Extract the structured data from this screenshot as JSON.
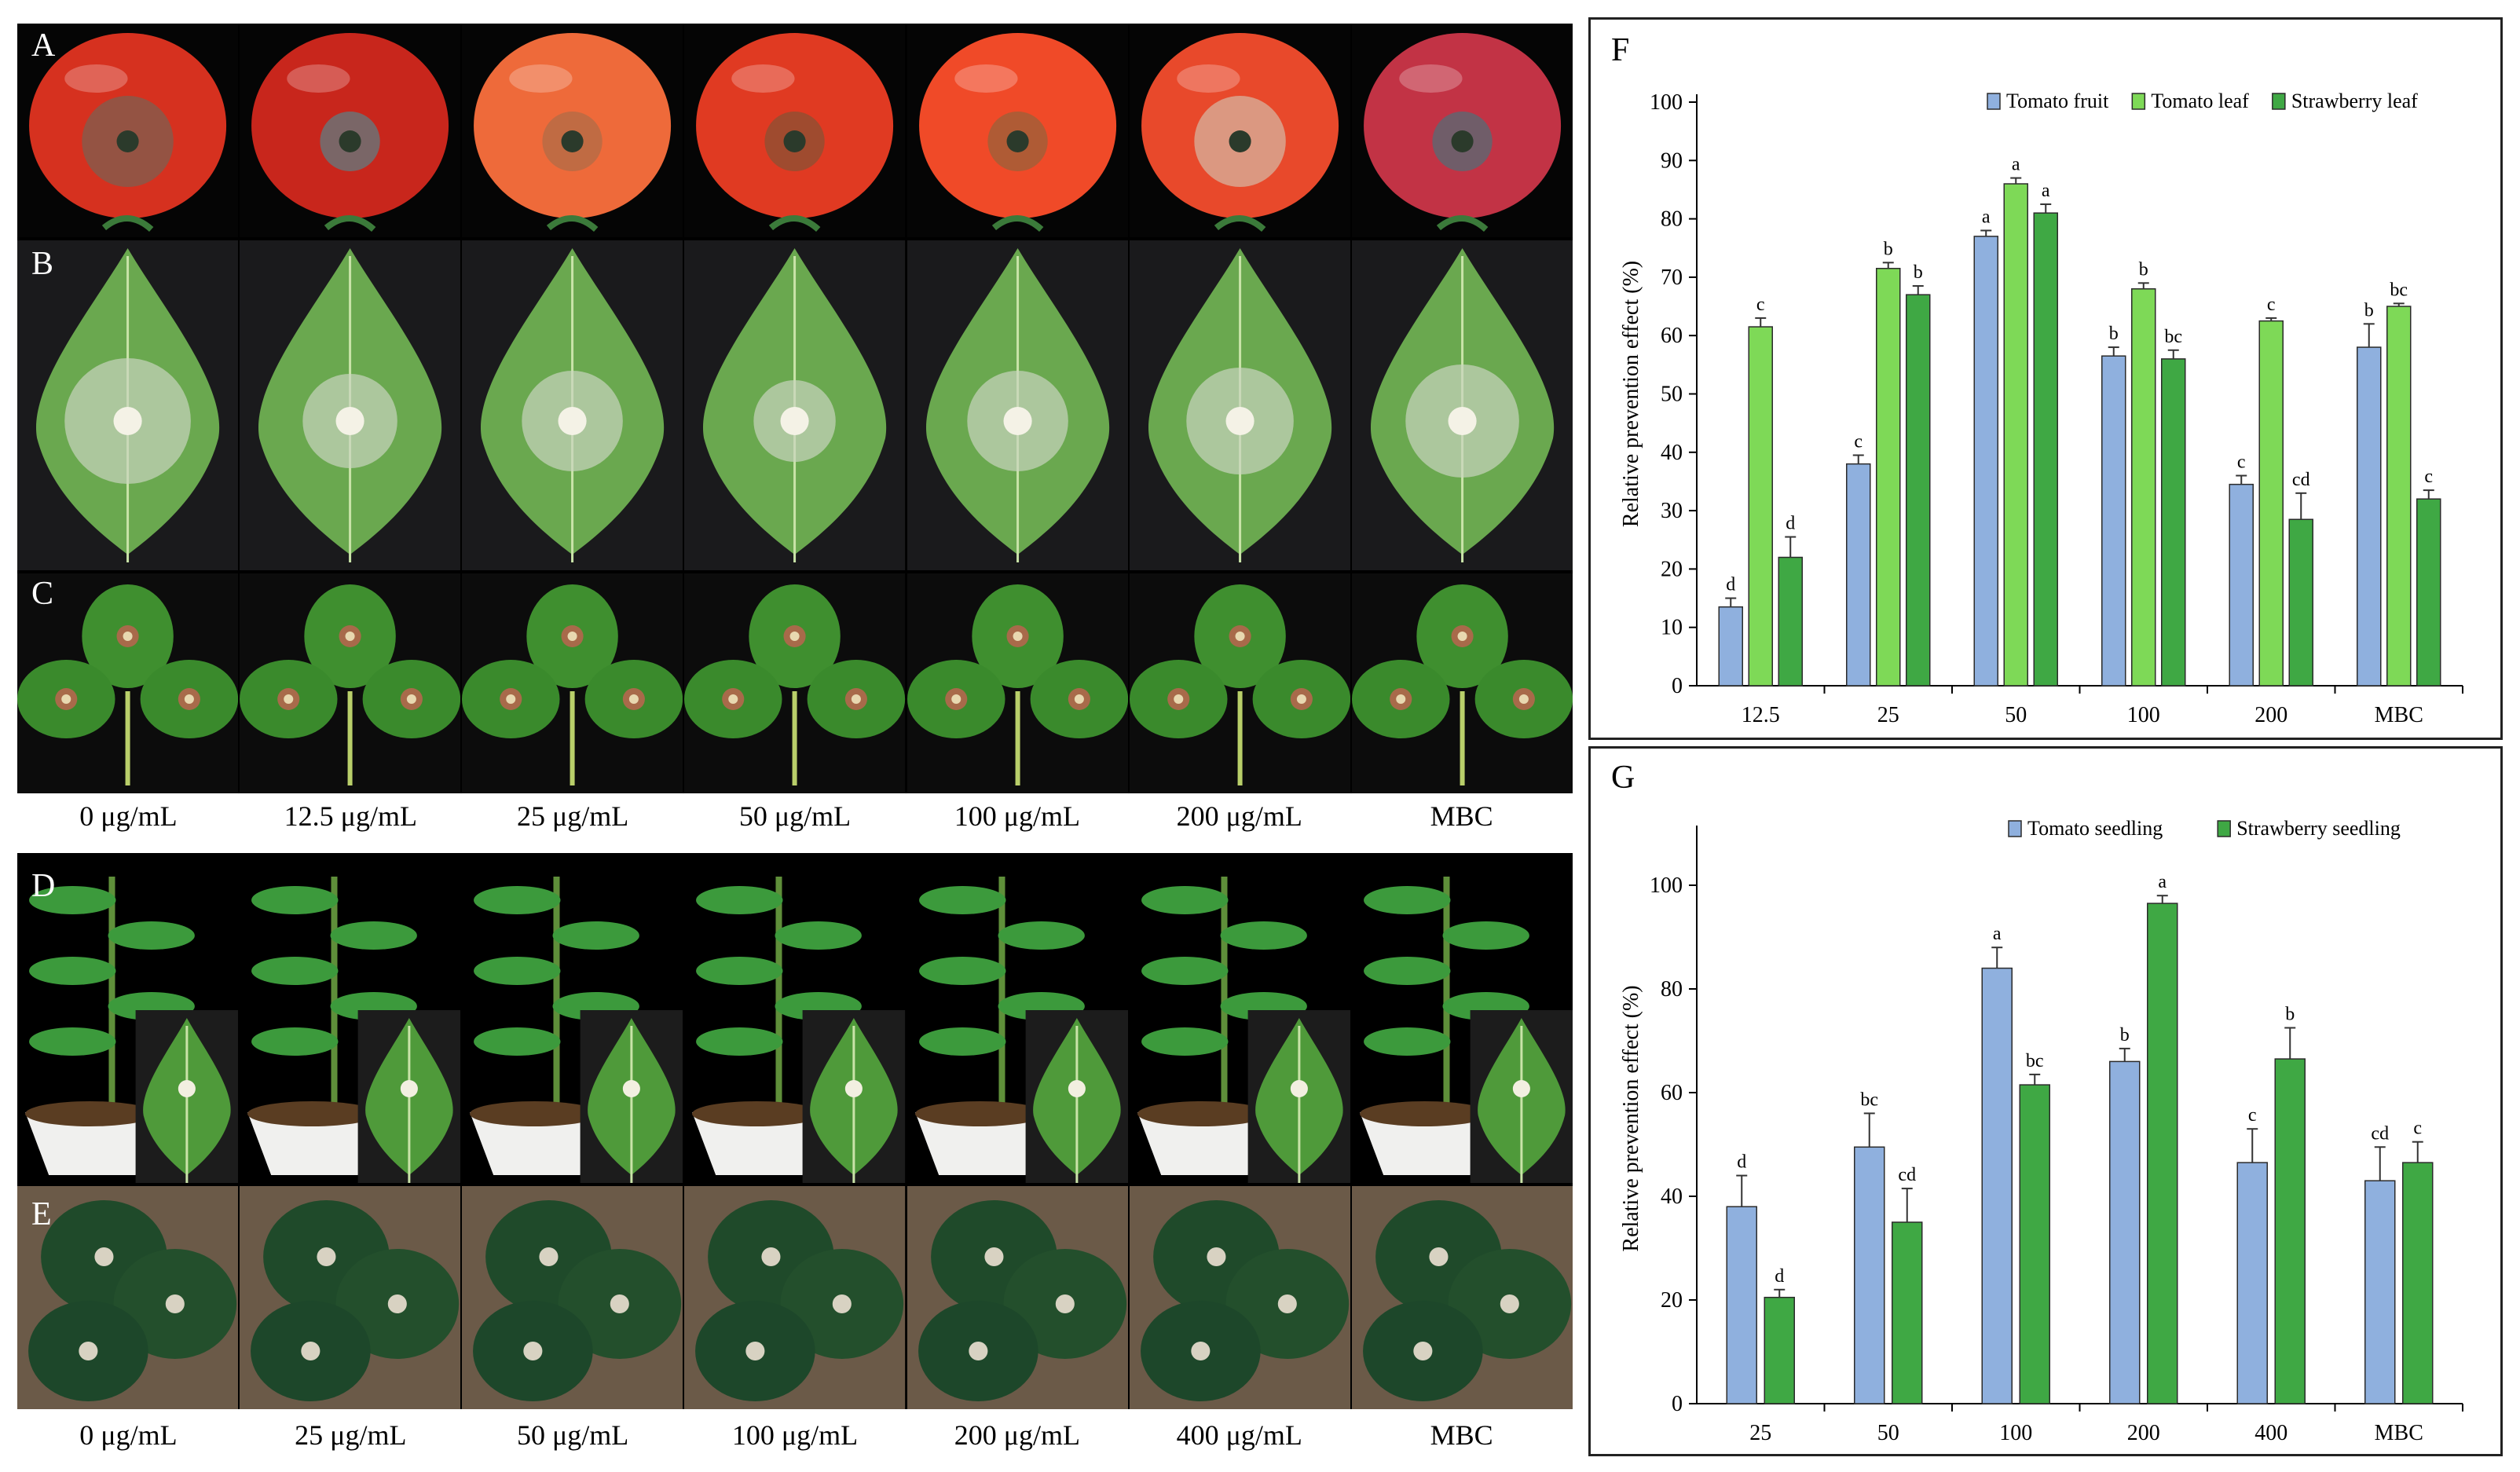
{
  "photos": {
    "row_labels": [
      "A",
      "B",
      "C",
      "D",
      "E"
    ],
    "captions_top": [
      "0 μg/mL",
      "12.5 μg/mL",
      "25 μg/mL",
      "50 μg/mL",
      "100 μg/mL",
      "200 μg/mL",
      "MBC"
    ],
    "captions_bottom": [
      "0 μg/mL",
      "25 μg/mL",
      "50 μg/mL",
      "100 μg/mL",
      "200 μg/mL",
      "400 μg/mL",
      "MBC"
    ]
  },
  "colors": {
    "tomato_fruit": "#8fb0de",
    "tomato_leaf": "#7ed957",
    "strawberry_leaf": "#3fa844",
    "tomato_seedling": "#8fb0de",
    "strawberry_seedling": "#3fa844"
  },
  "chart_data": [
    {
      "panel": "F",
      "type": "bar",
      "categories": [
        "12.5",
        "25",
        "50",
        "100",
        "200",
        "MBC"
      ],
      "ylabel": "Relative prevention effect (%)",
      "ylim": [
        0,
        100
      ],
      "yticks": [
        "0",
        "10",
        "20",
        "30",
        "40",
        "50",
        "60",
        "70",
        "80",
        "90",
        "100"
      ],
      "series": [
        {
          "name": "Tomato fruit",
          "values": [
            13.5,
            38,
            77,
            56.5,
            34.5,
            58
          ],
          "errors": [
            1.5,
            1.5,
            1,
            1.5,
            1.5,
            4
          ],
          "letters": [
            "d",
            "c",
            "a",
            "b",
            "c",
            "b"
          ]
        },
        {
          "name": "Tomato leaf",
          "values": [
            61.5,
            71.5,
            86,
            68,
            62.5,
            65
          ],
          "errors": [
            1.5,
            1,
            1,
            1,
            0.5,
            0.5
          ],
          "letters": [
            "c",
            "b",
            "a",
            "b",
            "c",
            "bc"
          ]
        },
        {
          "name": "Strawberry leaf",
          "values": [
            22,
            67,
            81,
            56,
            28.5,
            32
          ],
          "errors": [
            3.5,
            1.5,
            1.5,
            1.5,
            4.5,
            1.5
          ],
          "letters": [
            "d",
            "b",
            "a",
            "bc",
            "cd",
            "c"
          ]
        }
      ]
    },
    {
      "panel": "G",
      "type": "bar",
      "categories": [
        "25",
        "50",
        "100",
        "200",
        "400",
        "MBC"
      ],
      "ylabel": "Relative prevention effect (%)",
      "ylim": [
        0,
        110
      ],
      "yticks": [
        "0",
        "20",
        "40",
        "60",
        "80",
        "100"
      ],
      "series": [
        {
          "name": "Tomato seedling",
          "values": [
            38,
            49.5,
            84,
            66,
            46.5,
            43
          ],
          "errors": [
            6,
            6.5,
            4,
            2.5,
            6.5,
            6.5
          ],
          "letters": [
            "d",
            "bc",
            "a",
            "b",
            "c",
            "cd"
          ]
        },
        {
          "name": "Strawberry seedling",
          "values": [
            20.5,
            35,
            61.5,
            96.5,
            66.5,
            46.5
          ],
          "errors": [
            1.5,
            6.5,
            2,
            1.5,
            6,
            4
          ],
          "letters": [
            "d",
            "cd",
            "bc",
            "a",
            "b",
            "c"
          ]
        }
      ]
    }
  ]
}
